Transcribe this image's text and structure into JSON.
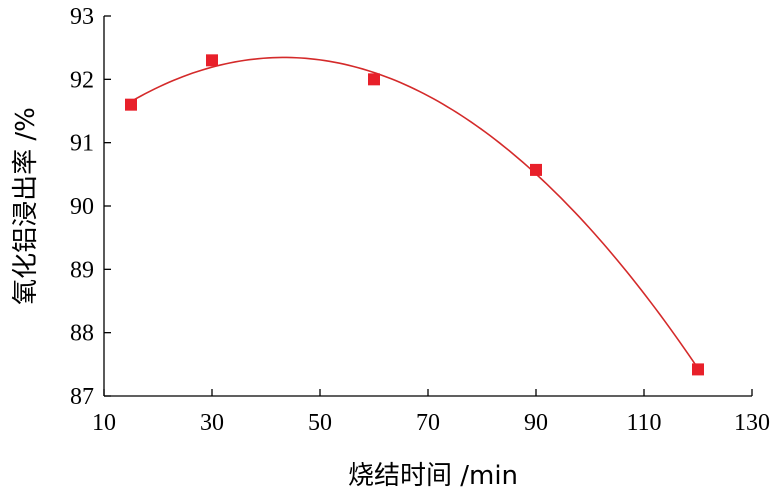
{
  "chart_data": {
    "type": "scatter",
    "xlabel": "烧结时间 /min",
    "ylabel": "氧化铝浸出率 /%",
    "xlim": [
      10,
      130
    ],
    "ylim": [
      87,
      93
    ],
    "xticks": [
      10,
      30,
      50,
      70,
      90,
      110,
      130
    ],
    "yticks": [
      87,
      88,
      89,
      90,
      91,
      92,
      93
    ],
    "grid": false,
    "series": [
      {
        "points": [
          {
            "x": 15,
            "y": 91.6
          },
          {
            "x": 30,
            "y": 92.3
          },
          {
            "x": 60,
            "y": 92.0
          },
          {
            "x": 90,
            "y": 90.57
          },
          {
            "x": 120,
            "y": 87.42
          }
        ],
        "marker": "square",
        "color": "#e8202a",
        "fit": "cubic polynomial trend line"
      }
    ],
    "curve_color": "#d42a2a",
    "axis_color": "#000000"
  }
}
